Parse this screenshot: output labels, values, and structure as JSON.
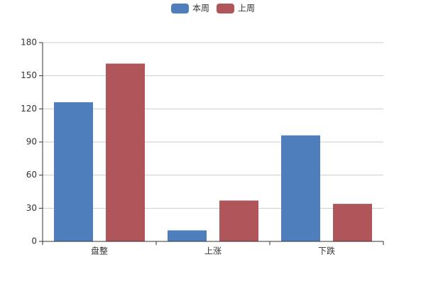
{
  "chart_data": {
    "type": "bar",
    "categories": [
      "盘整",
      "上涨",
      "下跌"
    ],
    "series": [
      {
        "name": "本周",
        "color": "#4e7fbc",
        "values": [
          126,
          10,
          96
        ]
      },
      {
        "name": "上周",
        "color": "#b0555a",
        "values": [
          161,
          37,
          34
        ]
      }
    ],
    "ylim": [
      0,
      180
    ],
    "yticks": [
      0,
      30,
      60,
      90,
      120,
      150,
      180
    ],
    "grid": true,
    "legend": "top"
  }
}
